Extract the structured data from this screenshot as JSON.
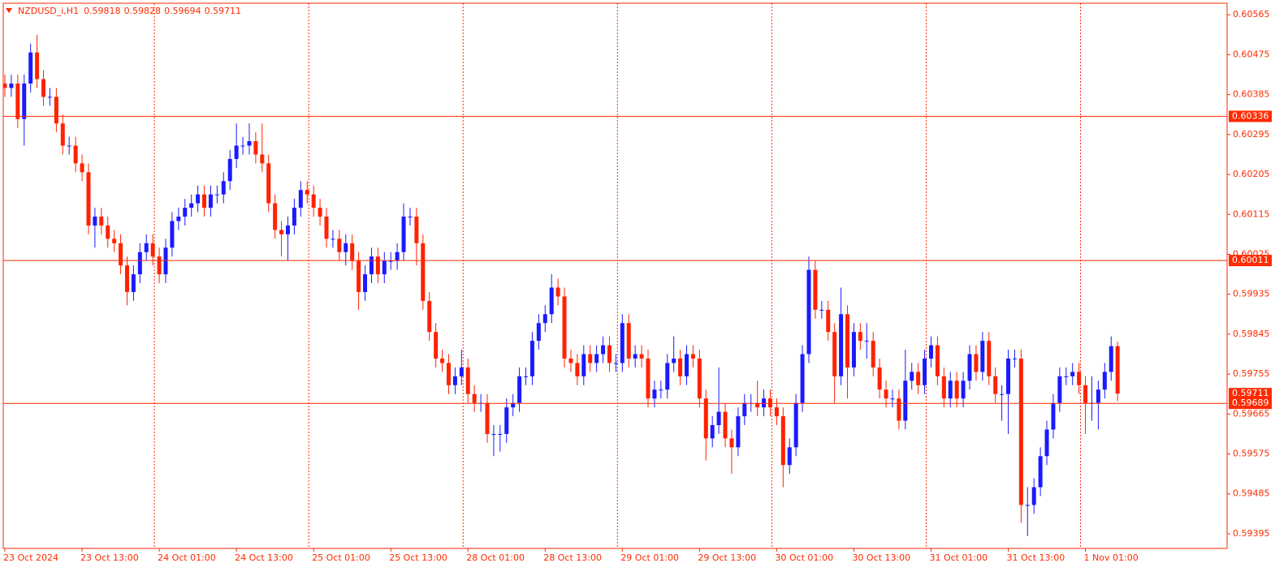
{
  "chart_data": {
    "type": "candlestick",
    "title": "NZDUSD_i,H1",
    "header_values": [
      0.59818,
      0.59828,
      0.59694,
      0.59711
    ],
    "bull_color": "#1a1aff",
    "bear_color": "#ff2200",
    "x": [
      "23 Oct 2024",
      null,
      null,
      null,
      null,
      null,
      null,
      null,
      null,
      null,
      null,
      null,
      "23 Oct 13:00",
      null,
      null,
      null,
      null,
      null,
      null,
      null,
      null,
      null,
      null,
      null,
      "24 Oct 01:00",
      null,
      null,
      null,
      null,
      null,
      null,
      null,
      null,
      null,
      null,
      null,
      "24 Oct 13:00",
      null,
      null,
      null,
      null,
      null,
      null,
      null,
      null,
      null,
      null,
      null,
      "25 Oct 01:00",
      null,
      null,
      null,
      null,
      null,
      null,
      null,
      null,
      null,
      null,
      null,
      "25 Oct 13:00",
      null,
      null,
      null,
      null,
      null,
      null,
      null,
      null,
      null,
      null,
      null,
      "28 Oct 01:00",
      null,
      null,
      null,
      null,
      null,
      null,
      null,
      null,
      null,
      null,
      null,
      "28 Oct 13:00",
      null,
      null,
      null,
      null,
      null,
      null,
      null,
      null,
      null,
      null,
      null,
      "29 Oct 01:00",
      null,
      null,
      null,
      null,
      null,
      null,
      null,
      null,
      null,
      null,
      null,
      "29 Oct 13:00",
      null,
      null,
      null,
      null,
      null,
      null,
      null,
      null,
      null,
      null,
      null,
      "30 Oct 01:00",
      null,
      null,
      null,
      null,
      null,
      null,
      null,
      null,
      null,
      null,
      null,
      "30 Oct 13:00",
      null,
      null,
      null,
      null,
      null,
      null,
      null,
      null,
      null,
      null,
      null,
      "31 Oct 01:00",
      null,
      null,
      null,
      null,
      null,
      null,
      null,
      null,
      null,
      null,
      null,
      "31 Oct 13:00",
      null,
      null,
      null,
      null,
      null,
      null,
      null,
      null,
      null,
      null,
      null,
      "1 Nov 01:00",
      null,
      null,
      null,
      null,
      null
    ],
    "open": [
      0.6041,
      0.604,
      0.6041,
      0.6033,
      0.6041,
      0.6048,
      0.6042,
      0.6038,
      0.6038,
      0.6032,
      0.6027,
      0.6027,
      0.6023,
      0.6021,
      0.6009,
      0.6011,
      0.6009,
      0.6006,
      0.6005,
      0.6,
      0.5994,
      0.5998,
      0.6003,
      0.6005,
      0.6002,
      0.5998,
      0.6004,
      0.601,
      0.6011,
      0.6013,
      0.6014,
      0.6016,
      0.6013,
      0.6016,
      0.6016,
      0.6019,
      0.6024,
      0.6027,
      0.6027,
      0.6028,
      0.6025,
      0.6023,
      0.6014,
      0.6008,
      0.6007,
      0.6009,
      0.6013,
      0.6017,
      0.6016,
      0.6013,
      0.6011,
      0.6006,
      0.6006,
      0.6003,
      0.6005,
      0.6001,
      0.5994,
      0.5998,
      0.6002,
      0.5998,
      0.6001,
      0.6001,
      0.6003,
      0.6011,
      0.6011,
      0.6005,
      0.5992,
      0.5985,
      0.5979,
      0.5978,
      0.5973,
      0.5975,
      0.5977,
      0.5971,
      0.5969,
      0.5969,
      0.5962,
      0.5962,
      0.5962,
      0.5968,
      0.5969,
      0.5975,
      0.5975,
      0.5983,
      0.5987,
      0.5989,
      0.5995,
      0.5993,
      0.5979,
      0.5978,
      0.5975,
      0.598,
      0.5978,
      0.598,
      0.5982,
      0.5978,
      0.5978,
      0.5987,
      0.5979,
      0.598,
      0.5979,
      0.597,
      0.5972,
      0.5972,
      0.5978,
      0.5979,
      0.5975,
      0.598,
      0.5979,
      0.597,
      0.5961,
      0.5964,
      0.5967,
      0.5961,
      0.5959,
      0.5966,
      0.5969,
      0.5969,
      0.5968,
      0.597,
      0.5968,
      0.5966,
      0.5955,
      0.5959,
      0.5969,
      0.598,
      0.5999,
      0.599,
      0.599,
      0.5985,
      0.5975,
      0.5989,
      0.5977,
      0.5985,
      0.5983,
      0.5983,
      0.5977,
      0.5972,
      0.597,
      0.597,
      0.5965,
      0.5974,
      0.5976,
      0.5973,
      0.5979,
      0.5982,
      0.5975,
      0.597,
      0.5974,
      0.597,
      0.5974,
      0.598,
      0.5976,
      0.5983,
      0.5975,
      0.5971,
      0.5971,
      0.5979,
      0.5979,
      0.5946,
      0.5946,
      0.595,
      0.5957,
      0.5963,
      0.5969,
      0.5975,
      0.5975,
      0.5976,
      0.5973,
      0.5969,
      0.5969,
      0.5972,
      0.5976,
      0.59818
    ],
    "high": [
      0.6043,
      0.6043,
      0.6043,
      0.6043,
      0.605,
      0.6052,
      0.6044,
      0.604,
      0.604,
      0.6034,
      0.6029,
      0.6029,
      0.6025,
      0.6023,
      0.6013,
      0.6013,
      0.6011,
      0.6008,
      0.6007,
      0.6002,
      0.6,
      0.6005,
      0.6007,
      0.6007,
      0.6004,
      0.6006,
      0.6012,
      0.6013,
      0.6015,
      0.6016,
      0.6018,
      0.6018,
      0.6018,
      0.6018,
      0.6021,
      0.6026,
      0.6032,
      0.6029,
      0.6032,
      0.603,
      0.6032,
      0.6025,
      0.6016,
      0.601,
      0.6011,
      0.6015,
      0.6019,
      0.6019,
      0.6018,
      0.6015,
      0.6013,
      0.6008,
      0.6008,
      0.6007,
      0.6007,
      0.6003,
      0.6,
      0.6004,
      0.6004,
      0.6003,
      0.6003,
      0.6005,
      0.6014,
      0.6013,
      0.6013,
      0.6007,
      0.5994,
      0.5987,
      0.5981,
      0.598,
      0.5977,
      0.5981,
      0.5979,
      0.5973,
      0.5971,
      0.5971,
      0.5964,
      0.5964,
      0.597,
      0.5971,
      0.5977,
      0.5977,
      0.5985,
      0.5989,
      0.5991,
      0.5998,
      0.5997,
      0.5995,
      0.5981,
      0.598,
      0.5982,
      0.5982,
      0.5982,
      0.5984,
      0.5984,
      0.598,
      0.5989,
      0.5989,
      0.5982,
      0.5982,
      0.5981,
      0.5974,
      0.5974,
      0.598,
      0.5984,
      0.5981,
      0.5982,
      0.5982,
      0.5981,
      0.5972,
      0.5966,
      0.5977,
      0.5969,
      0.5963,
      0.5968,
      0.5971,
      0.5971,
      0.5974,
      0.5972,
      0.5972,
      0.597,
      0.5968,
      0.5961,
      0.5971,
      0.5982,
      0.6002,
      0.6001,
      0.5992,
      0.5992,
      0.5987,
      0.5995,
      0.5991,
      0.5987,
      0.5987,
      0.5987,
      0.5985,
      0.5979,
      0.5974,
      0.5972,
      0.5972,
      0.5981,
      0.5978,
      0.5978,
      0.5981,
      0.5984,
      0.5984,
      0.5977,
      0.5976,
      0.5976,
      0.5976,
      0.5982,
      0.5982,
      0.5985,
      0.5985,
      0.5977,
      0.5973,
      0.5981,
      0.5981,
      0.5981,
      0.595,
      0.5952,
      0.5959,
      0.5965,
      0.5971,
      0.5977,
      0.5977,
      0.5978,
      0.5978,
      0.5975,
      0.5975,
      0.5974,
      0.5978,
      0.5984,
      0.59828
    ],
    "low": [
      0.6038,
      0.6038,
      0.6031,
      0.6027,
      0.6039,
      0.604,
      0.6036,
      0.6036,
      0.603,
      0.6025,
      0.6025,
      0.6021,
      0.6019,
      0.6007,
      0.6004,
      0.6007,
      0.6004,
      0.6003,
      0.5998,
      0.5991,
      0.5992,
      0.5996,
      0.6001,
      0.6,
      0.5996,
      0.5996,
      0.6002,
      0.6008,
      0.6009,
      0.6011,
      0.6012,
      0.6011,
      0.6011,
      0.6014,
      0.6014,
      0.6017,
      0.6022,
      0.6025,
      0.6025,
      0.6023,
      0.6021,
      0.6012,
      0.6006,
      0.6002,
      0.6001,
      0.6007,
      0.6011,
      0.6014,
      0.6011,
      0.6009,
      0.6004,
      0.6004,
      0.6001,
      0.6,
      0.5999,
      0.599,
      0.5992,
      0.5996,
      0.5996,
      0.5996,
      0.5999,
      0.5999,
      0.6001,
      0.6009,
      0.6,
      0.599,
      0.5983,
      0.5977,
      0.5976,
      0.5971,
      0.5971,
      0.5973,
      0.5969,
      0.5967,
      0.5967,
      0.596,
      0.5957,
      0.5958,
      0.596,
      0.5966,
      0.5967,
      0.5973,
      0.5973,
      0.5981,
      0.5985,
      0.5987,
      0.5991,
      0.5977,
      0.5976,
      0.5973,
      0.5973,
      0.5976,
      0.5976,
      0.5978,
      0.5976,
      0.5976,
      0.5976,
      0.5977,
      0.5977,
      0.5977,
      0.5968,
      0.5968,
      0.597,
      0.597,
      0.5976,
      0.5973,
      0.5973,
      0.5977,
      0.5968,
      0.5956,
      0.5959,
      0.5962,
      0.5959,
      0.5953,
      0.5957,
      0.5964,
      0.5967,
      0.5966,
      0.5966,
      0.5966,
      0.5964,
      0.595,
      0.5953,
      0.5957,
      0.5967,
      0.5978,
      0.5988,
      0.5988,
      0.5983,
      0.5969,
      0.5973,
      0.597,
      0.5975,
      0.5981,
      0.5979,
      0.5975,
      0.597,
      0.5968,
      0.5968,
      0.5963,
      0.5963,
      0.5972,
      0.5971,
      0.5971,
      0.5977,
      0.5973,
      0.5968,
      0.5968,
      0.5968,
      0.5968,
      0.5972,
      0.5974,
      0.5974,
      0.5973,
      0.5969,
      0.5965,
      0.5962,
      0.5977,
      0.5942,
      0.5939,
      0.5944,
      0.5948,
      0.5955,
      0.5961,
      0.5967,
      0.5973,
      0.5973,
      0.5971,
      0.5962,
      0.5965,
      0.5963,
      0.597,
      0.5974,
      0.59694
    ],
    "close": [
      0.604,
      0.6041,
      0.6033,
      0.6041,
      0.6048,
      0.6042,
      0.6038,
      0.6038,
      0.6032,
      0.6027,
      0.6027,
      0.6023,
      0.6021,
      0.6009,
      0.6011,
      0.6009,
      0.6006,
      0.6005,
      0.6,
      0.5994,
      0.5998,
      0.6003,
      0.6005,
      0.6002,
      0.5998,
      0.6004,
      0.601,
      0.6011,
      0.6013,
      0.6014,
      0.6016,
      0.6013,
      0.6016,
      0.6016,
      0.6019,
      0.6024,
      0.6027,
      0.6027,
      0.6028,
      0.6025,
      0.6023,
      0.6014,
      0.6008,
      0.6007,
      0.6009,
      0.6013,
      0.6017,
      0.6016,
      0.6013,
      0.6011,
      0.6006,
      0.6006,
      0.6003,
      0.6005,
      0.6001,
      0.5994,
      0.5998,
      0.6002,
      0.5998,
      0.6001,
      0.6001,
      0.6003,
      0.6011,
      0.6011,
      0.6005,
      0.5992,
      0.5985,
      0.5979,
      0.5978,
      0.5973,
      0.5975,
      0.5977,
      0.5971,
      0.5969,
      0.5969,
      0.5962,
      0.5962,
      0.5962,
      0.5968,
      0.5969,
      0.5975,
      0.5975,
      0.5983,
      0.5987,
      0.5989,
      0.5995,
      0.5993,
      0.5979,
      0.5978,
      0.5975,
      0.598,
      0.5978,
      0.598,
      0.5982,
      0.5978,
      0.5978,
      0.5987,
      0.5979,
      0.598,
      0.5979,
      0.597,
      0.5972,
      0.5972,
      0.5978,
      0.5979,
      0.5975,
      0.598,
      0.5979,
      0.597,
      0.5961,
      0.5964,
      0.5967,
      0.5961,
      0.5959,
      0.5966,
      0.5969,
      0.5969,
      0.5968,
      0.597,
      0.5968,
      0.5966,
      0.5955,
      0.5959,
      0.5969,
      0.598,
      0.5999,
      0.599,
      0.599,
      0.5985,
      0.5975,
      0.5989,
      0.5977,
      0.5985,
      0.5983,
      0.5983,
      0.5977,
      0.5972,
      0.597,
      0.597,
      0.5965,
      0.5974,
      0.5976,
      0.5973,
      0.5979,
      0.5982,
      0.5975,
      0.597,
      0.5974,
      0.597,
      0.5974,
      0.598,
      0.5976,
      0.5983,
      0.5975,
      0.5971,
      0.5971,
      0.5979,
      0.5979,
      0.5946,
      0.5946,
      0.595,
      0.5957,
      0.5963,
      0.5969,
      0.5975,
      0.5975,
      0.5976,
      0.5973,
      0.5969,
      0.5969,
      0.5972,
      0.5976,
      0.59818,
      0.59711
    ],
    "ylim": [
      0.59362,
      0.60591
    ],
    "yticks": [
      0.60565,
      0.60475,
      0.60385,
      0.60295,
      0.60205,
      0.60115,
      0.60025,
      0.59935,
      0.59845,
      0.59755,
      0.59665,
      0.59575,
      0.59485,
      0.59395
    ],
    "levels": [
      0.60336,
      0.60011,
      0.59689
    ],
    "last_price": 0.59711,
    "level_color": "#ff2a00",
    "day_separators": true
  }
}
